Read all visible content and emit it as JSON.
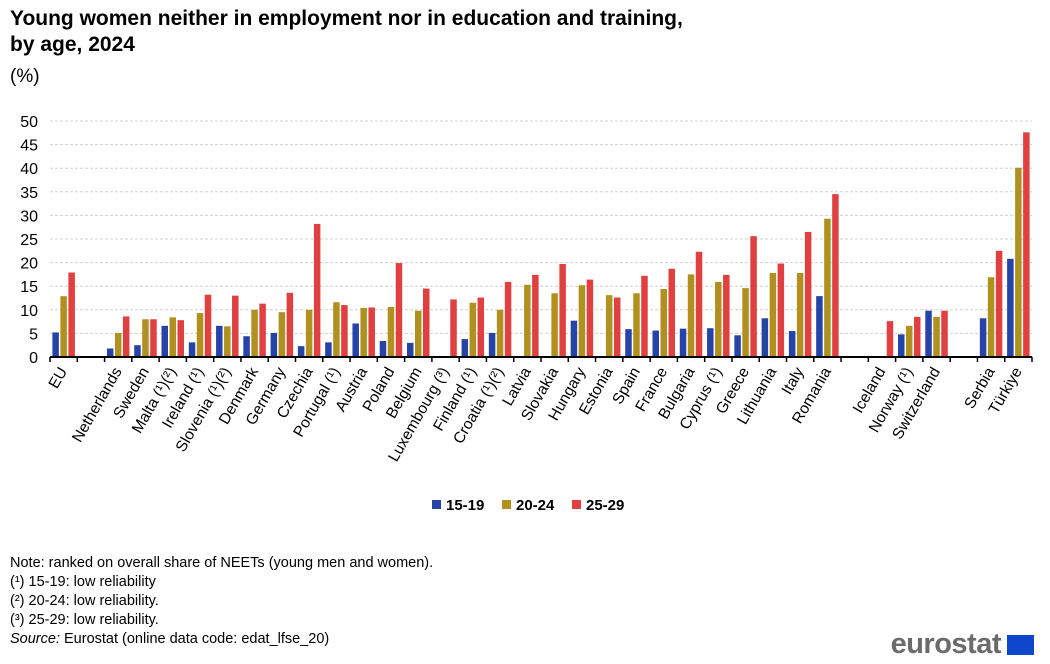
{
  "chart_data": {
    "type": "bar",
    "title": "Young women neither in employment nor in education and training, by age, 2024",
    "title_lines": [
      "Young women neither in employment nor in education and training,",
      "by age, 2024"
    ],
    "unit": "(%)",
    "ylim": [
      0,
      50
    ],
    "yticks": [
      0,
      5,
      10,
      15,
      20,
      25,
      30,
      35,
      40,
      45,
      50
    ],
    "grid": true,
    "legend_position": "bottom",
    "categories": [
      "EU",
      "",
      "Netherlands",
      "Sweden",
      "Malta (¹)(²)",
      "Ireland (¹)",
      "Slovenia (¹)(²)",
      "Denmark",
      "Germany",
      "Czechia",
      "Portugal (¹)",
      "Austria",
      "Poland",
      "Belgium",
      "Luxembourg (³)",
      "Finland (¹)",
      "Croatia (¹)(²)",
      "Latvia",
      "Slovakia",
      "Hungary",
      "Estonia",
      "Spain",
      "France",
      "Bulgaria",
      "Cyprus (¹)",
      "Greece",
      "Lithuania",
      "Italy",
      "Romania",
      "",
      "Iceland",
      "Norway (¹)",
      "Switzerland",
      "",
      "Serbia",
      "Türkiye"
    ],
    "series": [
      {
        "name": "15-19",
        "color": "#2644a8",
        "values": [
          5.2,
          null,
          1.8,
          2.5,
          6.6,
          3.1,
          6.6,
          4.4,
          5.1,
          2.3,
          3.1,
          7.1,
          3.4,
          3.0,
          null,
          3.8,
          5.1,
          null,
          null,
          7.7,
          null,
          5.9,
          5.6,
          6.0,
          6.1,
          4.6,
          8.2,
          5.5,
          12.9,
          null,
          null,
          4.8,
          9.8,
          null,
          8.2,
          20.8
        ]
      },
      {
        "name": "20-24",
        "color": "#b09120",
        "values": [
          12.9,
          null,
          5.1,
          8.0,
          8.4,
          9.3,
          6.5,
          10.0,
          9.5,
          10.0,
          11.6,
          10.4,
          10.6,
          9.8,
          null,
          11.5,
          10.0,
          15.3,
          13.5,
          15.2,
          13.1,
          13.5,
          14.4,
          17.5,
          15.9,
          14.6,
          17.8,
          17.8,
          29.3,
          null,
          null,
          6.6,
          8.5,
          null,
          16.9,
          40.1
        ]
      },
      {
        "name": "25-29",
        "color": "#e04040",
        "values": [
          17.9,
          null,
          8.6,
          8.0,
          7.8,
          13.2,
          13.0,
          11.3,
          13.6,
          28.2,
          11.0,
          10.5,
          19.9,
          14.5,
          12.2,
          12.6,
          15.9,
          17.4,
          19.7,
          16.4,
          12.6,
          17.2,
          18.7,
          22.3,
          17.4,
          25.6,
          19.8,
          26.5,
          34.5,
          null,
          7.6,
          8.5,
          9.8,
          null,
          22.5,
          47.6
        ]
      }
    ]
  },
  "notes": {
    "note": "Note: ranked on overall share of NEETs (young men and women).",
    "f1": "(¹) 15-19: low reliability",
    "f2": "(²) 20-24: low reliability.",
    "f3": "(³) 25-29: low reliability.",
    "source_label": "Source:",
    "source_text": " Eurostat (online data code: edat_lfse_20)"
  },
  "logo": "eurostat"
}
